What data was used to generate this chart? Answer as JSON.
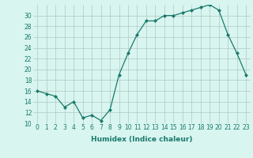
{
  "x": [
    0,
    1,
    2,
    3,
    4,
    5,
    6,
    7,
    8,
    9,
    10,
    11,
    12,
    13,
    14,
    15,
    16,
    17,
    18,
    19,
    20,
    21,
    22,
    23
  ],
  "y": [
    16,
    15.5,
    15,
    13,
    14,
    11,
    11.5,
    10.5,
    12.5,
    19,
    23,
    26.5,
    29,
    29,
    30,
    30,
    30.5,
    31,
    31.5,
    32,
    31,
    26.5,
    23,
    19
  ],
  "line_color": "#1a7a6a",
  "marker": "D",
  "marker_size": 2.0,
  "bg_color": "#d8f5f0",
  "grid_color": "#b0c8c4",
  "xlabel": "Humidex (Indice chaleur)",
  "ylim": [
    10,
    32
  ],
  "xlim": [
    -0.5,
    23.5
  ],
  "yticks": [
    10,
    12,
    14,
    16,
    18,
    20,
    22,
    24,
    26,
    28,
    30
  ],
  "xticks": [
    0,
    1,
    2,
    3,
    4,
    5,
    6,
    7,
    8,
    9,
    10,
    11,
    12,
    13,
    14,
    15,
    16,
    17,
    18,
    19,
    20,
    21,
    22,
    23
  ],
  "xlabel_fontsize": 6.5,
  "tick_fontsize": 5.5
}
